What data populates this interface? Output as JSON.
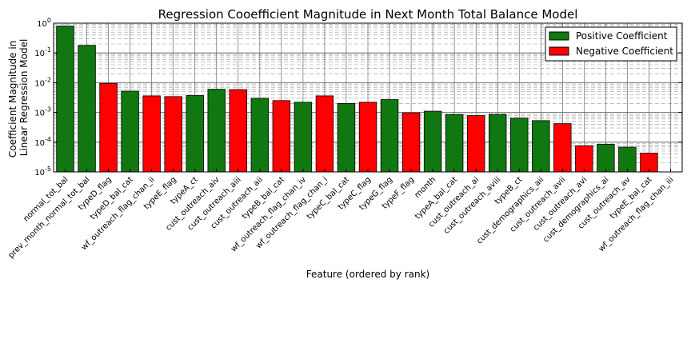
{
  "chart_data": {
    "type": "bar",
    "title": "Regression Cooefficient Magnitude in Next Month Total Balance Model",
    "xlabel": "Feature (ordered by rank)",
    "ylabel": "Coefficient Magnitude in Linear Regression Model",
    "ylabel_lines": [
      "Coefficient Magnitude in",
      "Linear Regression Model"
    ],
    "yscale": "log",
    "ylim": [
      1e-05,
      1
    ],
    "yticks": [
      {
        "base": "10",
        "exp": "-5"
      },
      {
        "base": "10",
        "exp": "-4"
      },
      {
        "base": "10",
        "exp": "-3"
      },
      {
        "base": "10",
        "exp": "-2"
      },
      {
        "base": "10",
        "exp": "-1"
      },
      {
        "base": "10",
        "exp": "0"
      }
    ],
    "grid": true,
    "legend_position": "top-right",
    "colors": {
      "positive": "#117711",
      "negative": "#ff0000"
    },
    "legend": [
      {
        "label": "Positive Coefficient",
        "sign": "positive"
      },
      {
        "label": "Negative Coefficient",
        "sign": "negative"
      }
    ],
    "categories": [
      "normal_tot_bal",
      "prev_month_normal_tot_bal",
      "typeD_flag",
      "typeD_bal_cat",
      "wf_outreach_flag_chan_ii",
      "typeE_flag",
      "typeA_ct",
      "cust_outreach_aiv",
      "cust_outreach_aiii",
      "cust_outreach_aii",
      "typeB_bal_cat",
      "wf_outreach_flag_chan_iv",
      "wf_outreach_flag_chan_i",
      "typeC_bal_cat",
      "typeC_flag",
      "typeG_flag",
      "typeF_flag",
      "month",
      "typeA_bal_cat",
      "cust_outreach_ai",
      "cust_outreach_aviii",
      "typeB_ct",
      "cust_demographics_aii",
      "cust_outreach_avii",
      "cust_outreach_avi",
      "cust_demographics_ai",
      "cust_outreach_av",
      "typeE_bal_cat",
      "wf_outreach_flag_chan_iii"
    ],
    "values": [
      0.8,
      0.18,
      0.0095,
      0.0052,
      0.0036,
      0.0034,
      0.0037,
      0.006,
      0.0058,
      0.003,
      0.0025,
      0.0022,
      0.0036,
      0.002,
      0.0022,
      0.0027,
      0.00097,
      0.0011,
      0.00085,
      0.00078,
      0.00086,
      0.00064,
      0.00053,
      0.00042,
      7.5e-05,
      8.5e-05,
      6.8e-05,
      4.3e-05,
      0.0
    ],
    "signs": [
      "positive",
      "positive",
      "negative",
      "positive",
      "negative",
      "negative",
      "positive",
      "positive",
      "negative",
      "positive",
      "negative",
      "positive",
      "negative",
      "positive",
      "negative",
      "positive",
      "negative",
      "positive",
      "positive",
      "negative",
      "positive",
      "positive",
      "positive",
      "negative",
      "negative",
      "positive",
      "positive",
      "negative",
      "positive"
    ]
  }
}
